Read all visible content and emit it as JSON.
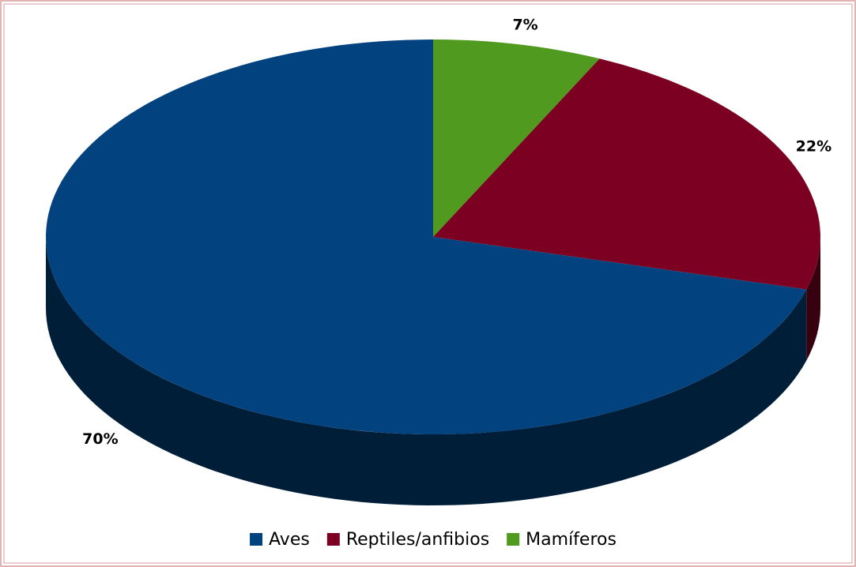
{
  "chart_data": {
    "type": "pie",
    "three_d": true,
    "categories": [
      "Aves",
      "Reptiles/anfibios",
      "Mamíferos"
    ],
    "values": [
      70,
      22,
      7
    ],
    "value_labels": [
      "70%",
      "22%",
      "7%"
    ],
    "colors": [
      "#02437f",
      "#7b0021",
      "#4f9a1f"
    ],
    "legend": "bottom"
  }
}
